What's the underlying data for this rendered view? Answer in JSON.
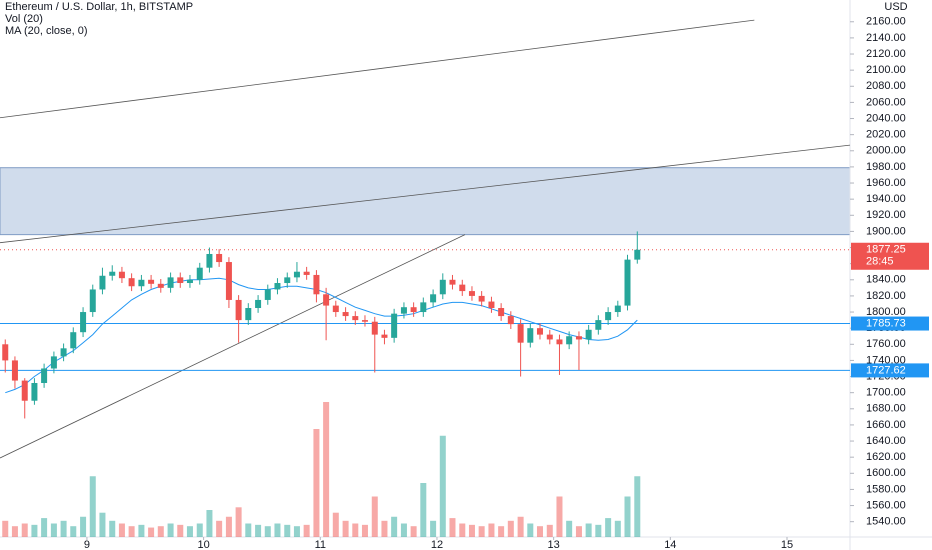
{
  "chart_data": {
    "type": "candlestick",
    "title": "Ethereum / U.S. Dollar, 1h, BITSTAMP",
    "indicators": [
      "Vol (20)",
      "MA (20, close, 0)"
    ],
    "currency": "USD",
    "up_color": "#26a69a",
    "down_color": "#ef5350",
    "ma_color": "#2196f3",
    "x": [
      8.3,
      8.383,
      8.467,
      8.55,
      8.633,
      8.717,
      8.8,
      8.883,
      8.967,
      9.05,
      9.133,
      9.217,
      9.3,
      9.383,
      9.467,
      9.55,
      9.633,
      9.717,
      9.8,
      9.883,
      9.967,
      10.05,
      10.133,
      10.217,
      10.3,
      10.383,
      10.467,
      10.55,
      10.633,
      10.717,
      10.8,
      10.883,
      10.967,
      11.05,
      11.133,
      11.217,
      11.3,
      11.383,
      11.467,
      11.55,
      11.633,
      11.717,
      11.8,
      11.883,
      11.967,
      12.05,
      12.133,
      12.217,
      12.3,
      12.383,
      12.467,
      12.55,
      12.633,
      12.717,
      12.8,
      12.883,
      12.967,
      13.05,
      13.133,
      13.217,
      13.3,
      13.383,
      13.467,
      13.55,
      13.633,
      13.717
    ],
    "open": [
      1760,
      1740,
      1715,
      1690,
      1712,
      1730,
      1745,
      1755,
      1775,
      1800,
      1828,
      1845,
      1850,
      1842,
      1832,
      1840,
      1835,
      1830,
      1843,
      1836,
      1840,
      1855,
      1872,
      1862,
      1815,
      1790,
      1805,
      1815,
      1828,
      1836,
      1843,
      1850,
      1846,
      1822,
      1808,
      1800,
      1795,
      1790,
      1788,
      1772,
      1768,
      1798,
      1806,
      1800,
      1812,
      1822,
      1840,
      1834,
      1826,
      1820,
      1813,
      1805,
      1795,
      1785,
      1762,
      1780,
      1772,
      1766,
      1760,
      1770,
      1766,
      1778,
      1790,
      1800,
      1808,
      1865
    ],
    "high": [
      1766,
      1745,
      1718,
      1718,
      1736,
      1751,
      1761,
      1781,
      1806,
      1834,
      1855,
      1858,
      1856,
      1848,
      1846,
      1846,
      1841,
      1849,
      1849,
      1846,
      1861,
      1880,
      1878,
      1868,
      1821,
      1811,
      1821,
      1834,
      1842,
      1849,
      1862,
      1856,
      1852,
      1830,
      1814,
      1806,
      1801,
      1796,
      1794,
      1778,
      1804,
      1812,
      1812,
      1818,
      1828,
      1848,
      1846,
      1840,
      1832,
      1826,
      1819,
      1811,
      1801,
      1791,
      1786,
      1786,
      1778,
      1772,
      1776,
      1776,
      1784,
      1796,
      1806,
      1814,
      1871,
      1900
    ],
    "low": [
      1725,
      1705,
      1668,
      1685,
      1706,
      1724,
      1739,
      1749,
      1769,
      1794,
      1822,
      1839,
      1836,
      1826,
      1826,
      1829,
      1824,
      1824,
      1830,
      1830,
      1834,
      1849,
      1856,
      1805,
      1762,
      1784,
      1799,
      1809,
      1822,
      1830,
      1837,
      1840,
      1812,
      1765,
      1794,
      1789,
      1784,
      1782,
      1725,
      1760,
      1762,
      1792,
      1794,
      1794,
      1806,
      1816,
      1828,
      1820,
      1814,
      1807,
      1799,
      1789,
      1779,
      1720,
      1756,
      1766,
      1760,
      1722,
      1754,
      1728,
      1760,
      1772,
      1784,
      1794,
      1802,
      1860
    ],
    "close": [
      1740,
      1715,
      1690,
      1712,
      1730,
      1745,
      1755,
      1775,
      1800,
      1828,
      1845,
      1850,
      1842,
      1832,
      1840,
      1835,
      1830,
      1843,
      1836,
      1840,
      1855,
      1872,
      1862,
      1815,
      1790,
      1805,
      1815,
      1828,
      1836,
      1843,
      1850,
      1846,
      1822,
      1808,
      1800,
      1795,
      1790,
      1788,
      1772,
      1768,
      1798,
      1806,
      1800,
      1812,
      1822,
      1840,
      1834,
      1826,
      1820,
      1813,
      1805,
      1795,
      1785,
      1762,
      1780,
      1772,
      1766,
      1760,
      1770,
      1766,
      1778,
      1790,
      1800,
      1808,
      1865,
      1877.25
    ],
    "volume": [
      12,
      8,
      10,
      9,
      14,
      10,
      12,
      8,
      15,
      45,
      18,
      12,
      10,
      8,
      9,
      7,
      8,
      10,
      9,
      8,
      10,
      20,
      12,
      15,
      22,
      10,
      9,
      8,
      10,
      9,
      8,
      9,
      80,
      100,
      18,
      12,
      10,
      9,
      30,
      12,
      15,
      10,
      8,
      40,
      12,
      75,
      14,
      10,
      9,
      8,
      10,
      8,
      12,
      15,
      10,
      8,
      9,
      30,
      12,
      8,
      10,
      9,
      14,
      12,
      30,
      45
    ],
    "volume_lim": [
      0,
      100
    ],
    "ma": [
      1700,
      1704,
      1710,
      1720,
      1728,
      1738,
      1745,
      1752,
      1762,
      1772,
      1785,
      1795,
      1805,
      1815,
      1822,
      1828,
      1832,
      1836,
      1838,
      1840,
      1840,
      1841,
      1842,
      1840,
      1834,
      1830,
      1828,
      1828,
      1830,
      1832,
      1832,
      1830,
      1828,
      1824,
      1818,
      1812,
      1806,
      1802,
      1798,
      1795,
      1795,
      1796,
      1798,
      1802,
      1806,
      1810,
      1812,
      1812,
      1810,
      1808,
      1804,
      1800,
      1796,
      1792,
      1788,
      1784,
      1780,
      1776,
      1772,
      1769,
      1766,
      1765,
      1766,
      1770,
      1778,
      1790
    ],
    "zone": [
      1896,
      1979
    ],
    "trendlines": [
      {
        "x": [
          8.255,
          14.72
        ],
        "y": [
          2041,
          2162
        ]
      },
      {
        "x": [
          8.255,
          15.54
        ],
        "y": [
          1886,
          2007
        ]
      },
      {
        "x": [
          8.255,
          12.24
        ],
        "y": [
          1619,
          1896
        ]
      }
    ],
    "hlines": [
      1785.73,
      1727.62
    ],
    "last_price": 1877.25,
    "countdown": "28:45",
    "xlim": [
      8.255,
      15.54
    ],
    "xticks": [
      9,
      10,
      11,
      12,
      13,
      14,
      15
    ],
    "ylim": [
      1521,
      2187
    ],
    "yticks": [
      {
        "value": 1540,
        "label": "1540.00"
      },
      {
        "value": 1560,
        "label": "1560.00"
      },
      {
        "value": 1580,
        "label": "1580.00"
      },
      {
        "value": 1600,
        "label": "1600.00"
      },
      {
        "value": 1620,
        "label": "1620.00"
      },
      {
        "value": 1640,
        "label": "1640.00"
      },
      {
        "value": 1660,
        "label": "1660.00"
      },
      {
        "value": 1680,
        "label": "1680.00"
      },
      {
        "value": 1700,
        "label": "1700.00"
      },
      {
        "value": 1720,
        "label": "1720.00"
      },
      {
        "value": 1740,
        "label": "1740.00"
      },
      {
        "value": 1760,
        "label": "1760.00"
      },
      {
        "value": 1780,
        "label": "1780.00"
      },
      {
        "value": 1800,
        "label": "1800.00"
      },
      {
        "value": 1820,
        "label": "1820.00"
      },
      {
        "value": 1840,
        "label": "1840.00"
      },
      {
        "value": 1860,
        "label": "1860.00"
      },
      {
        "value": 1880,
        "label": "1880.00"
      },
      {
        "value": 1900,
        "label": "1900.00"
      },
      {
        "value": 1920,
        "label": "1920.00"
      },
      {
        "value": 1940,
        "label": "1940.00"
      },
      {
        "value": 1960,
        "label": "1960.00"
      },
      {
        "value": 1980,
        "label": "1980.00"
      },
      {
        "value": 2000,
        "label": "2000.00"
      },
      {
        "value": 2020,
        "label": "2020.00"
      },
      {
        "value": 2040,
        "label": "2040.00"
      },
      {
        "value": 2060,
        "label": "2060.00"
      },
      {
        "value": 2080,
        "label": "2080.00"
      },
      {
        "value": 2100,
        "label": "2100.00"
      },
      {
        "value": 2120,
        "label": "2120.00"
      },
      {
        "value": 2140,
        "label": "2140.00"
      },
      {
        "value": 2160,
        "label": "2160.00"
      }
    ]
  }
}
